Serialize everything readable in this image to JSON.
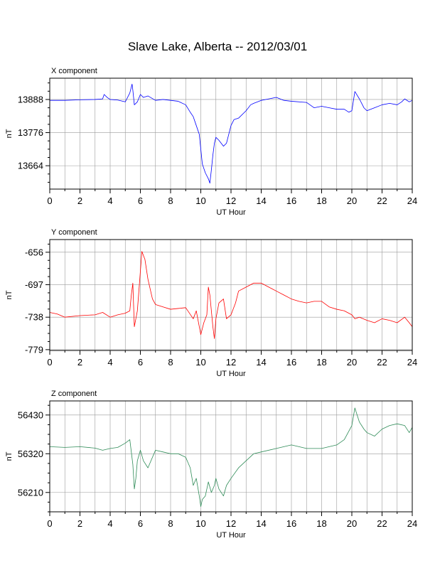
{
  "page": {
    "title": "Slave Lake, Alberta -- 2012/03/01"
  },
  "chart_data": [
    {
      "type": "line",
      "title": "X component",
      "xlabel": "UT Hour",
      "ylabel": "nT",
      "xlim": [
        0,
        24
      ],
      "ylim": [
        13585,
        13960
      ],
      "xticks": [
        0,
        2,
        4,
        6,
        8,
        10,
        12,
        14,
        16,
        18,
        20,
        22,
        24
      ],
      "xtick_labels": [
        "0",
        "2",
        "4",
        "6",
        "8",
        "10",
        "12",
        "14",
        "16",
        "18",
        "20",
        "22",
        "24"
      ],
      "yticks": [
        13664,
        13776,
        13888
      ],
      "ytick_labels": [
        "13664",
        "13776",
        "13888"
      ],
      "grid": true,
      "color": "#0000ff",
      "series": [
        {
          "x": [
            0,
            1,
            2,
            3,
            3.5,
            3.6,
            3.8,
            4,
            4.5,
            5,
            5.3,
            5.45,
            5.5,
            5.6,
            5.8,
            6,
            6.2,
            6.5,
            7,
            7.5,
            8,
            8.5,
            9,
            9.3,
            9.5,
            9.7,
            9.9,
            10,
            10.1,
            10.3,
            10.5,
            10.6,
            10.7,
            10.8,
            10.9,
            11,
            11.2,
            11.5,
            11.7,
            12,
            12.2,
            12.5,
            13,
            13.3,
            13.5,
            14,
            14.5,
            15,
            15.5,
            16,
            17,
            17.5,
            18,
            18.5,
            19,
            19.5,
            19.8,
            20,
            20.2,
            20.5,
            20.8,
            21,
            21.5,
            22,
            22.5,
            23,
            23.3,
            23.5,
            23.8,
            24
          ],
          "y": [
            13885,
            13885,
            13887,
            13888,
            13890,
            13905,
            13895,
            13888,
            13886,
            13880,
            13910,
            13940,
            13920,
            13870,
            13880,
            13905,
            13895,
            13900,
            13885,
            13888,
            13885,
            13882,
            13870,
            13845,
            13830,
            13800,
            13770,
            13720,
            13670,
            13640,
            13620,
            13605,
            13650,
            13700,
            13740,
            13760,
            13750,
            13730,
            13740,
            13800,
            13820,
            13825,
            13850,
            13870,
            13875,
            13885,
            13890,
            13895,
            13885,
            13882,
            13878,
            13860,
            13865,
            13860,
            13855,
            13855,
            13845,
            13850,
            13915,
            13890,
            13860,
            13850,
            13860,
            13870,
            13875,
            13870,
            13880,
            13890,
            13880,
            13885
          ]
        }
      ]
    },
    {
      "type": "line",
      "title": "Y component",
      "xlabel": "UT Hour",
      "ylabel": "nT",
      "xlim": [
        0,
        24
      ],
      "ylim": [
        -780,
        -640
      ],
      "xticks": [
        0,
        2,
        4,
        6,
        8,
        10,
        12,
        14,
        16,
        18,
        20,
        22,
        24
      ],
      "xtick_labels": [
        "0",
        "2",
        "4",
        "6",
        "8",
        "10",
        "12",
        "14",
        "16",
        "18",
        "20",
        "22",
        "24"
      ],
      "yticks": [
        -779,
        -738,
        -697,
        -656
      ],
      "ytick_labels": [
        "-779",
        "-738",
        "-697",
        "-656"
      ],
      "grid": true,
      "color": "#ff0000",
      "series": [
        {
          "x": [
            0,
            0.5,
            1,
            2,
            3,
            3.5,
            4,
            4.5,
            5,
            5.3,
            5.4,
            5.5,
            5.6,
            5.8,
            6,
            6.1,
            6.3,
            6.5,
            6.8,
            7,
            7.5,
            8,
            8.5,
            9,
            9.5,
            9.7,
            9.9,
            10,
            10.2,
            10.4,
            10.5,
            10.6,
            10.8,
            10.9,
            11,
            11.2,
            11.5,
            11.7,
            12,
            12.3,
            12.5,
            13,
            13.5,
            14,
            14.5,
            15,
            15.5,
            16,
            16.5,
            17,
            17.5,
            18,
            18.5,
            19,
            19.5,
            20,
            20.2,
            20.5,
            21,
            21.5,
            22,
            22.5,
            23,
            23.5,
            23.8,
            24
          ],
          "y": [
            -732,
            -734,
            -738,
            -736,
            -735,
            -732,
            -738,
            -735,
            -733,
            -730,
            -710,
            -695,
            -750,
            -730,
            -680,
            -655,
            -665,
            -690,
            -715,
            -722,
            -725,
            -728,
            -727,
            -726,
            -740,
            -730,
            -750,
            -760,
            -745,
            -735,
            -700,
            -710,
            -750,
            -765,
            -740,
            -720,
            -715,
            -740,
            -735,
            -720,
            -705,
            -700,
            -695,
            -695,
            -700,
            -705,
            -710,
            -715,
            -718,
            -720,
            -718,
            -718,
            -725,
            -728,
            -730,
            -735,
            -740,
            -738,
            -742,
            -745,
            -740,
            -742,
            -745,
            -738,
            -745,
            -750
          ]
        }
      ]
    },
    {
      "type": "line",
      "title": "Z component",
      "xlabel": "UT Hour",
      "ylabel": "nT",
      "xlim": [
        0,
        24
      ],
      "ylim": [
        56155,
        56470
      ],
      "xticks": [
        0,
        2,
        4,
        6,
        8,
        10,
        12,
        14,
        16,
        18,
        20,
        22,
        24
      ],
      "xtick_labels": [
        "0",
        "2",
        "4",
        "6",
        "8",
        "10",
        "12",
        "14",
        "16",
        "18",
        "20",
        "22",
        "24"
      ],
      "yticks": [
        56210,
        56320,
        56430
      ],
      "ytick_labels": [
        "56210",
        "56320",
        "56430"
      ],
      "grid": true,
      "color": "#2e8b57",
      "series": [
        {
          "x": [
            0,
            1,
            2,
            3,
            3.5,
            4,
            4.5,
            5,
            5.3,
            5.5,
            5.6,
            5.7,
            5.8,
            6,
            6.2,
            6.5,
            7,
            7.5,
            8,
            8.5,
            9,
            9.3,
            9.5,
            9.7,
            9.9,
            10,
            10.1,
            10.3,
            10.5,
            10.7,
            10.9,
            11,
            11.2,
            11.5,
            11.7,
            12,
            12.5,
            13,
            13.5,
            14,
            15,
            16,
            17,
            18,
            18.5,
            19,
            19.5,
            20,
            20.2,
            20.5,
            20.8,
            21,
            21.5,
            22,
            22.5,
            23,
            23.5,
            23.8,
            24
          ],
          "y": [
            56340,
            56338,
            56340,
            56336,
            56330,
            56335,
            56338,
            56350,
            56360,
            56290,
            56220,
            56250,
            56300,
            56330,
            56300,
            56280,
            56330,
            56325,
            56320,
            56320,
            56310,
            56280,
            56230,
            56250,
            56200,
            56170,
            56190,
            56200,
            56240,
            56210,
            56230,
            56250,
            56220,
            56200,
            56230,
            56250,
            56280,
            56300,
            56320,
            56325,
            56335,
            56345,
            56335,
            56335,
            56340,
            56345,
            56360,
            56400,
            56450,
            56410,
            56390,
            56380,
            56370,
            56390,
            56400,
            56405,
            56400,
            56380,
            56395
          ]
        }
      ]
    }
  ]
}
